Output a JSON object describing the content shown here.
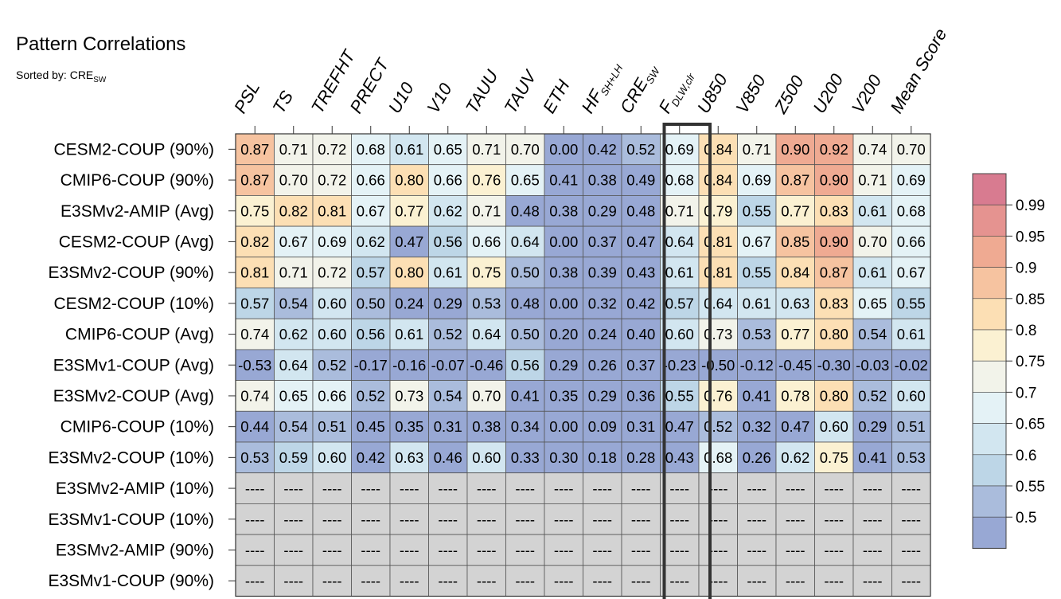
{
  "title": "Pattern Correlations",
  "subtitle": {
    "prefix": "Sorted by: CRE",
    "sub": "SW"
  },
  "chart_data": {
    "type": "heatmap",
    "columns": [
      {
        "label": "PSL"
      },
      {
        "label": "TS"
      },
      {
        "label": "TREFHT"
      },
      {
        "label": "PRECT"
      },
      {
        "label": "U10"
      },
      {
        "label": "V10"
      },
      {
        "label": "TAUU"
      },
      {
        "label": "TAUV"
      },
      {
        "label": "ETH"
      },
      {
        "label": "HF",
        "sub": "SH+LH"
      },
      {
        "label": "CRE",
        "sub": "SW"
      },
      {
        "label": "F",
        "sub": "DLW,clr"
      },
      {
        "label": "U850"
      },
      {
        "label": "V850"
      },
      {
        "label": "Z500"
      },
      {
        "label": "U200"
      },
      {
        "label": "V200"
      },
      {
        "label": "Mean Score"
      }
    ],
    "rows": [
      "CESM2-COUP (90%)",
      "CMIP6-COUP (90%)",
      "E3SMv2-AMIP (Avg)",
      "CESM2-COUP (Avg)",
      "E3SMv2-COUP (90%)",
      "CESM2-COUP (10%)",
      "CMIP6-COUP (Avg)",
      "E3SMv1-COUP (Avg)",
      "E3SMv2-COUP (Avg)",
      "CMIP6-COUP (10%)",
      "E3SMv2-COUP (10%)",
      "E3SMv2-AMIP (10%)",
      "E3SMv1-COUP (10%)",
      "E3SMv2-AMIP (90%)",
      "E3SMv1-COUP (90%)"
    ],
    "values": [
      [
        0.87,
        0.71,
        0.72,
        0.68,
        0.61,
        0.65,
        0.71,
        0.7,
        0.0,
        0.42,
        0.52,
        0.69,
        0.84,
        0.71,
        0.9,
        0.92,
        0.74,
        0.7
      ],
      [
        0.87,
        0.7,
        0.72,
        0.66,
        0.8,
        0.66,
        0.76,
        0.65,
        0.41,
        0.38,
        0.49,
        0.68,
        0.84,
        0.69,
        0.87,
        0.9,
        0.71,
        0.69
      ],
      [
        0.75,
        0.82,
        0.81,
        0.67,
        0.77,
        0.62,
        0.71,
        0.48,
        0.38,
        0.29,
        0.48,
        0.71,
        0.79,
        0.55,
        0.77,
        0.83,
        0.61,
        0.68
      ],
      [
        0.82,
        0.67,
        0.69,
        0.62,
        0.47,
        0.56,
        0.66,
        0.64,
        0.0,
        0.37,
        0.47,
        0.64,
        0.81,
        0.67,
        0.85,
        0.9,
        0.7,
        0.66
      ],
      [
        0.81,
        0.71,
        0.72,
        0.57,
        0.8,
        0.61,
        0.75,
        0.5,
        0.38,
        0.39,
        0.43,
        0.61,
        0.81,
        0.55,
        0.84,
        0.87,
        0.61,
        0.67
      ],
      [
        0.57,
        0.54,
        0.6,
        0.5,
        0.24,
        0.29,
        0.53,
        0.48,
        0.0,
        0.32,
        0.42,
        0.57,
        0.64,
        0.61,
        0.63,
        0.83,
        0.65,
        0.55
      ],
      [
        0.74,
        0.62,
        0.6,
        0.56,
        0.61,
        0.52,
        0.64,
        0.5,
        0.2,
        0.24,
        0.4,
        0.6,
        0.73,
        0.53,
        0.77,
        0.8,
        0.54,
        0.61
      ],
      [
        -0.53,
        0.64,
        0.52,
        -0.17,
        -0.16,
        -0.07,
        -0.46,
        0.56,
        0.29,
        0.26,
        0.37,
        -0.23,
        -0.5,
        -0.12,
        -0.45,
        -0.3,
        -0.03,
        -0.02
      ],
      [
        0.74,
        0.65,
        0.66,
        0.52,
        0.73,
        0.54,
        0.7,
        0.41,
        0.35,
        0.29,
        0.36,
        0.55,
        0.76,
        0.41,
        0.78,
        0.8,
        0.52,
        0.6
      ],
      [
        0.44,
        0.54,
        0.51,
        0.45,
        0.35,
        0.31,
        0.38,
        0.34,
        0.0,
        0.09,
        0.31,
        0.47,
        0.52,
        0.32,
        0.47,
        0.6,
        0.29,
        0.51
      ],
      [
        0.53,
        0.59,
        0.6,
        0.42,
        0.63,
        0.46,
        0.6,
        0.33,
        0.3,
        0.18,
        0.28,
        0.43,
        0.68,
        0.26,
        0.62,
        0.75,
        0.41,
        0.53
      ],
      [
        null,
        null,
        null,
        null,
        null,
        null,
        null,
        null,
        null,
        null,
        null,
        null,
        null,
        null,
        null,
        null,
        null,
        null
      ],
      [
        null,
        null,
        null,
        null,
        null,
        null,
        null,
        null,
        null,
        null,
        null,
        null,
        null,
        null,
        null,
        null,
        null,
        null
      ],
      [
        null,
        null,
        null,
        null,
        null,
        null,
        null,
        null,
        null,
        null,
        null,
        null,
        null,
        null,
        null,
        null,
        null,
        null
      ],
      [
        null,
        null,
        null,
        null,
        null,
        null,
        null,
        null,
        null,
        null,
        null,
        null,
        null,
        null,
        null,
        null,
        null,
        null
      ]
    ],
    "missing_label": "----",
    "highlighted_column": "F_DLW,clr",
    "colorbar": {
      "ticks": [
        "0.99",
        "0.95",
        "0.9",
        "0.85",
        "0.8",
        "0.75",
        "0.7",
        "0.65",
        "0.6",
        "0.55",
        "0.5"
      ],
      "levels": [
        0.5,
        0.55,
        0.6,
        0.65,
        0.7,
        0.75,
        0.8,
        0.85,
        0.9,
        0.95,
        0.99
      ],
      "colors": [
        "#98a8d4",
        "#aabcdc",
        "#bdd6e7",
        "#d2e6f0",
        "#e4f2f6",
        "#f2f3ea",
        "#fbf1d2",
        "#fcdfb4",
        "#f6c3a0",
        "#efaa92",
        "#e59390",
        "#d87b90"
      ]
    },
    "missing_color": "#d3d3d3"
  }
}
